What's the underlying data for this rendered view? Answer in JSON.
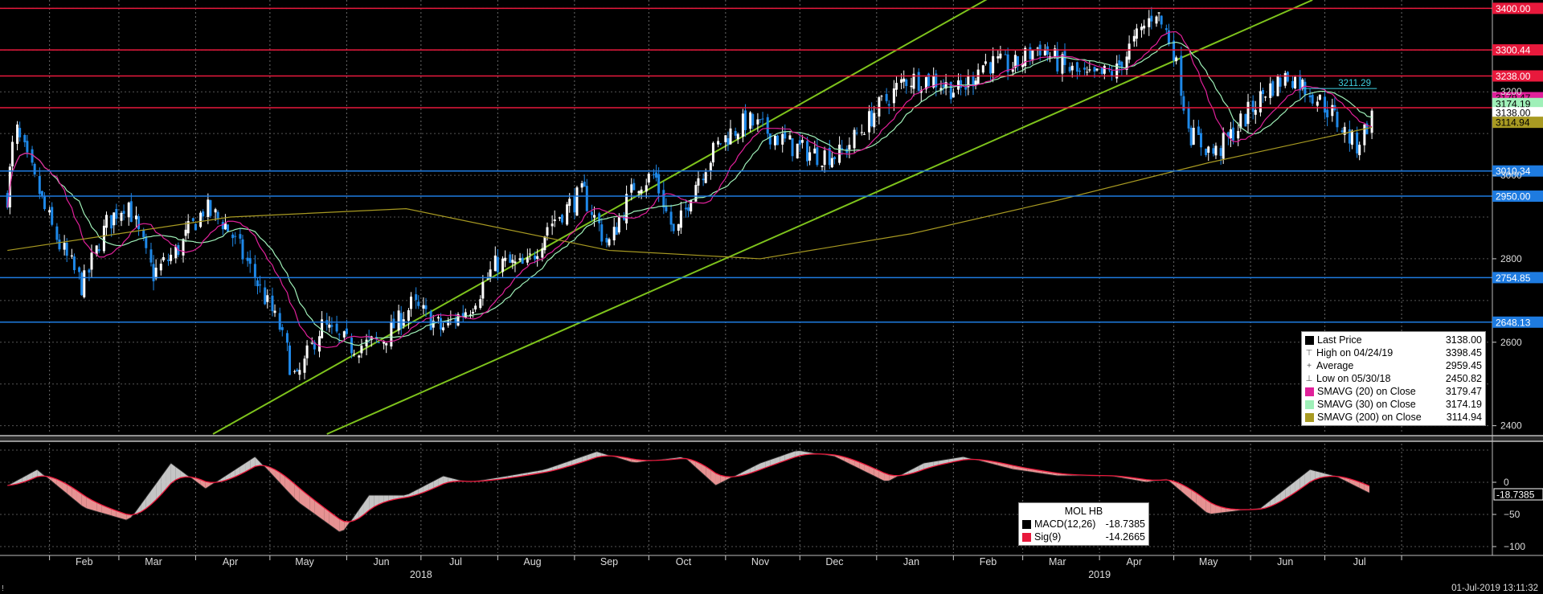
{
  "chart_data": {
    "type": "candlestick",
    "ticker": "MOL HB",
    "x_axis": {
      "month_labels": [
        "Feb",
        "Mar",
        "Apr",
        "May",
        "Jun",
        "Jul",
        "Aug",
        "Sep",
        "Oct",
        "Nov",
        "Dec",
        "Jan",
        "Feb",
        "Mar",
        "Apr",
        "May",
        "Jun",
        "Jul"
      ],
      "year_labels": [
        {
          "label": "2018",
          "after_month": "Jun"
        },
        {
          "label": "2019",
          "after_month": "Mar"
        }
      ]
    },
    "price_axis": {
      "ylim": [
        2380,
        3420
      ],
      "tick_labels": [
        "2400",
        "2600",
        "2800",
        "3000",
        "3200"
      ]
    },
    "macd_axis": {
      "ylim": [
        -110,
        60
      ],
      "tick_labels": [
        "0",
        "-50",
        "-100"
      ]
    },
    "horizontal_levels": [
      {
        "value": 3400.0,
        "label": "3400.00",
        "color": "#e8193c"
      },
      {
        "value": 3300.44,
        "label": "3300.44",
        "color": "#e8193c"
      },
      {
        "value": 3238.0,
        "label": "3238.00",
        "color": "#e8193c"
      },
      {
        "value": 3162.04,
        "label": "3162.04",
        "color": "#e8193c"
      },
      {
        "value": 3010.34,
        "label": "3010.34",
        "color": "#1e7be0"
      },
      {
        "value": 2950.0,
        "label": "2950.00",
        "color": "#1e7be0"
      },
      {
        "value": 2754.85,
        "label": "2754.85",
        "color": "#1e7be0"
      },
      {
        "value": 2648.13,
        "label": "2648.13",
        "color": "#1e7be0"
      }
    ],
    "last_value_tags": [
      {
        "value": 3179.47,
        "label": "3179.47",
        "color": "#e0209a"
      },
      {
        "value": 3174.19,
        "label": "3174.19",
        "color": "#9ff0b8"
      },
      {
        "value": 3138.0,
        "label": "3138.00",
        "color": "#ffffff"
      },
      {
        "value": 3114.94,
        "label": "3114.94",
        "color": "#a89a22"
      }
    ],
    "high_annotation": {
      "value": 3211.29,
      "label": "3211.29",
      "color": "#40d0e0"
    },
    "trend_channel": {
      "color": "#7ec31c",
      "upper": [
        {
          "date": "2018-04-08",
          "price": 2380
        },
        {
          "date": "2019-04-15",
          "price": 3620
        }
      ],
      "lower": [
        {
          "date": "2018-05-24",
          "price": 2380
        },
        {
          "date": "2019-06-26",
          "price": 3420
        }
      ]
    },
    "price_path": [
      {
        "date": "2018-01-15",
        "price": 2950
      },
      {
        "date": "2018-01-19",
        "price": 3110
      },
      {
        "date": "2018-01-28",
        "price": 2960
      },
      {
        "date": "2018-02-05",
        "price": 2840
      },
      {
        "date": "2018-02-15",
        "price": 2730
      },
      {
        "date": "2018-02-24",
        "price": 2880
      },
      {
        "date": "2018-03-05",
        "price": 2940
      },
      {
        "date": "2018-03-15",
        "price": 2760
      },
      {
        "date": "2018-03-25",
        "price": 2820
      },
      {
        "date": "2018-04-05",
        "price": 2920
      },
      {
        "date": "2018-04-14",
        "price": 2880
      },
      {
        "date": "2018-04-25",
        "price": 2760
      },
      {
        "date": "2018-05-05",
        "price": 2640
      },
      {
        "date": "2018-05-12",
        "price": 2500
      },
      {
        "date": "2018-05-22",
        "price": 2640
      },
      {
        "date": "2018-06-03",
        "price": 2590
      },
      {
        "date": "2018-06-15",
        "price": 2600
      },
      {
        "date": "2018-06-28",
        "price": 2690
      },
      {
        "date": "2018-07-10",
        "price": 2630
      },
      {
        "date": "2018-07-22",
        "price": 2690
      },
      {
        "date": "2018-08-01",
        "price": 2790
      },
      {
        "date": "2018-08-13",
        "price": 2780
      },
      {
        "date": "2018-08-22",
        "price": 2880
      },
      {
        "date": "2018-09-05",
        "price": 2960
      },
      {
        "date": "2018-09-15",
        "price": 2830
      },
      {
        "date": "2018-09-26",
        "price": 2980
      },
      {
        "date": "2018-10-04",
        "price": 3000
      },
      {
        "date": "2018-10-12",
        "price": 2850
      },
      {
        "date": "2018-10-20",
        "price": 2980
      },
      {
        "date": "2018-10-30",
        "price": 3080
      },
      {
        "date": "2018-11-10",
        "price": 3130
      },
      {
        "date": "2018-11-20",
        "price": 3100
      },
      {
        "date": "2018-11-28",
        "price": 3070
      },
      {
        "date": "2018-12-08",
        "price": 3050
      },
      {
        "date": "2018-12-18",
        "price": 3050
      },
      {
        "date": "2019-01-02",
        "price": 3160
      },
      {
        "date": "2019-01-13",
        "price": 3230
      },
      {
        "date": "2019-01-24",
        "price": 3230
      },
      {
        "date": "2019-02-04",
        "price": 3200
      },
      {
        "date": "2019-02-14",
        "price": 3270
      },
      {
        "date": "2019-02-26",
        "price": 3260
      },
      {
        "date": "2019-03-08",
        "price": 3310
      },
      {
        "date": "2019-03-18",
        "price": 3260
      },
      {
        "date": "2019-03-28",
        "price": 3230
      },
      {
        "date": "2019-04-08",
        "price": 3250
      },
      {
        "date": "2019-04-24",
        "price": 3398
      },
      {
        "date": "2019-05-01",
        "price": 3310
      },
      {
        "date": "2019-05-08",
        "price": 3100
      },
      {
        "date": "2019-05-18",
        "price": 3050
      },
      {
        "date": "2019-05-28",
        "price": 3120
      },
      {
        "date": "2019-06-07",
        "price": 3200
      },
      {
        "date": "2019-06-17",
        "price": 3240
      },
      {
        "date": "2019-06-26",
        "price": 3200
      },
      {
        "date": "2019-07-04",
        "price": 3150
      },
      {
        "date": "2019-07-14",
        "price": 3070
      },
      {
        "date": "2019-07-20",
        "price": 3138
      }
    ],
    "sma200_path": [
      {
        "date": "2018-01-15",
        "price": 2820
      },
      {
        "date": "2018-04-15",
        "price": 2900
      },
      {
        "date": "2018-06-25",
        "price": 2920
      },
      {
        "date": "2018-09-15",
        "price": 2820
      },
      {
        "date": "2018-11-15",
        "price": 2800
      },
      {
        "date": "2019-01-15",
        "price": 2860
      },
      {
        "date": "2019-03-15",
        "price": 2940
      },
      {
        "date": "2019-05-15",
        "price": 3030
      },
      {
        "date": "2019-07-20",
        "price": 3115
      }
    ],
    "macd_path": [
      {
        "date": "2018-01-15",
        "value": -5
      },
      {
        "date": "2018-01-27",
        "value": 20
      },
      {
        "date": "2018-02-15",
        "value": -40
      },
      {
        "date": "2018-03-05",
        "value": -60
      },
      {
        "date": "2018-03-22",
        "value": 30
      },
      {
        "date": "2018-04-05",
        "value": -10
      },
      {
        "date": "2018-04-25",
        "value": 40
      },
      {
        "date": "2018-05-12",
        "value": -30
      },
      {
        "date": "2018-05-30",
        "value": -80
      },
      {
        "date": "2018-06-10",
        "value": -20
      },
      {
        "date": "2018-06-25",
        "value": -20
      },
      {
        "date": "2018-07-10",
        "value": 10
      },
      {
        "date": "2018-07-20",
        "value": 0
      },
      {
        "date": "2018-08-05",
        "value": 10
      },
      {
        "date": "2018-08-20",
        "value": 20
      },
      {
        "date": "2018-09-10",
        "value": 48
      },
      {
        "date": "2018-09-25",
        "value": 30
      },
      {
        "date": "2018-10-15",
        "value": 40
      },
      {
        "date": "2018-10-28",
        "value": -5
      },
      {
        "date": "2018-11-15",
        "value": 30
      },
      {
        "date": "2018-11-30",
        "value": 50
      },
      {
        "date": "2018-12-15",
        "value": 40
      },
      {
        "date": "2019-01-05",
        "value": 0
      },
      {
        "date": "2019-01-20",
        "value": 30
      },
      {
        "date": "2019-02-05",
        "value": 40
      },
      {
        "date": "2019-02-25",
        "value": 20
      },
      {
        "date": "2019-03-15",
        "value": 10
      },
      {
        "date": "2019-04-05",
        "value": 10
      },
      {
        "date": "2019-04-20",
        "value": 0
      },
      {
        "date": "2019-04-28",
        "value": 5
      },
      {
        "date": "2019-05-15",
        "value": -50
      },
      {
        "date": "2019-06-05",
        "value": -40
      },
      {
        "date": "2019-06-25",
        "value": 20
      },
      {
        "date": "2019-07-05",
        "value": 10
      },
      {
        "date": "2019-07-20",
        "value": -18.7385
      }
    ],
    "legend_main": [
      {
        "glyph": "■",
        "glyph_color": "#000000",
        "name": "Last Price",
        "value": "3138.00"
      },
      {
        "glyph": "⊤",
        "glyph_color": "#555555",
        "name": "High on 04/24/19",
        "value": "3398.45"
      },
      {
        "glyph": "+",
        "glyph_color": "#555555",
        "name": "Average",
        "value": "2959.45"
      },
      {
        "glyph": "⊥",
        "glyph_color": "#555555",
        "name": "Low on 05/30/18",
        "value": "2450.82"
      },
      {
        "glyph": "■",
        "glyph_color": "#e0209a",
        "name": "SMAVG (20)  on Close",
        "value": "3179.47"
      },
      {
        "glyph": "■",
        "glyph_color": "#9ff0b8",
        "name": "SMAVG (30)  on Close",
        "value": "3174.19"
      },
      {
        "glyph": "■",
        "glyph_color": "#a89a22",
        "name": "SMAVG (200)  on Close",
        "value": "3114.94"
      }
    ],
    "legend_macd": {
      "title": "MOL HB",
      "rows": [
        {
          "color": "#000000",
          "name": "MACD(12,26)",
          "value": "-18.7385"
        },
        {
          "color": "#e8193c",
          "name": "Sig(9)",
          "value": "-14.2665"
        }
      ]
    },
    "macd_last_tag": "-18.7385"
  },
  "footer": {
    "timestamp": "01-Jul-2019 13:11:32",
    "corner_mark": "!"
  }
}
